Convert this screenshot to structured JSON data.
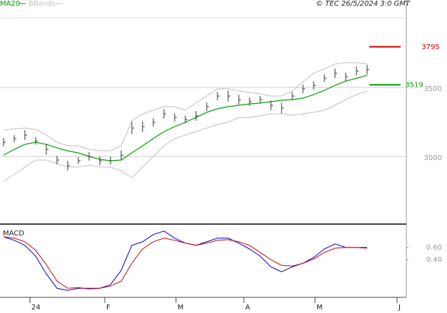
{
  "chart_data": [
    {
      "type": "ohlc",
      "source": "© TEC 26/5/2024 3:0 GMT",
      "categories": [
        null,
        null,
        null,
        null,
        null,
        null,
        null,
        null,
        null,
        null,
        null,
        null,
        null,
        null,
        null,
        null,
        null,
        null,
        null,
        null,
        null,
        null,
        null,
        null,
        null,
        null,
        null,
        null,
        null,
        null,
        null,
        null,
        null,
        null,
        null
      ],
      "xlim": [
        -0.33,
        37.67
      ],
      "ylim": [
        2510,
        4134
      ],
      "yticks": [
        3000,
        3500
      ],
      "grid": true,
      "bar_color": "#333333",
      "high": [
        3133,
        3154,
        3190,
        3141,
        3092,
        3004,
        2968,
        2994,
        3030,
        3001,
        2997,
        3045,
        3251,
        3256,
        3277,
        3344,
        3313,
        3296,
        3329,
        3393,
        3468,
        3478,
        3447,
        3427,
        3440,
        3406,
        3391,
        3468,
        3522,
        3545,
        3595,
        3638,
        3607,
        3651,
        3664
      ],
      "low": [
        3073,
        3104,
        3120,
        3085,
        3012,
        2944,
        2898,
        2944,
        2970,
        2937,
        2941,
        2975,
        3161,
        3176,
        3217,
        3274,
        3253,
        3240,
        3259,
        3329,
        3408,
        3398,
        3377,
        3367,
        3384,
        3336,
        3311,
        3408,
        3458,
        3485,
        3539,
        3568,
        3547,
        3587,
        3594
      ],
      "close": [
        3103,
        3129,
        3155,
        3113,
        3052,
        2974,
        2933,
        2969,
        3000,
        2969,
        2969,
        3010,
        3206,
        3216,
        3247,
        3309,
        3283,
        3268,
        3294,
        3361,
        3438,
        3438,
        3412,
        3397,
        3412,
        3371,
        3351,
        3438,
        3490,
        3515,
        3567,
        3603,
        3577,
        3619,
        3629
      ],
      "series": [
        {
          "name": "MA20",
          "color": "#00a000",
          "values": [
            3010,
            3052,
            3088,
            3103,
            3088,
            3062,
            3041,
            3026,
            3000,
            2979,
            2969,
            2974,
            3026,
            3077,
            3129,
            3180,
            3216,
            3247,
            3283,
            3320,
            3345,
            3361,
            3371,
            3381,
            3387,
            3397,
            3407,
            3412,
            3423,
            3448,
            3479,
            3515,
            3546,
            3567,
            3588
          ]
        },
        {
          "name": "BBands",
          "color": "#c0c0c0",
          "upper": [
            3191,
            3201,
            3206,
            3196,
            3155,
            3103,
            3077,
            3077,
            3052,
            3041,
            3041,
            3077,
            3258,
            3309,
            3335,
            3361,
            3361,
            3335,
            3387,
            3438,
            3490,
            3490,
            3474,
            3464,
            3454,
            3438,
            3438,
            3474,
            3541,
            3603,
            3634,
            3670,
            3680,
            3680,
            3670
          ],
          "lower": [
            2820,
            2871,
            2923,
            2974,
            2974,
            2948,
            2923,
            2923,
            2938,
            2923,
            2923,
            2897,
            2845,
            2923,
            3000,
            3077,
            3129,
            3155,
            3180,
            3206,
            3232,
            3247,
            3283,
            3283,
            3294,
            3309,
            3309,
            3299,
            3309,
            3320,
            3335,
            3371,
            3412,
            3448,
            3474
          ]
        }
      ],
      "price_labels": [
        {
          "value": 3795,
          "color": "#cc0000"
        },
        {
          "value": 3519,
          "color": "#00a000"
        }
      ]
    },
    {
      "type": "line",
      "title": "MACD",
      "xlim": [
        -0.33,
        37.67
      ],
      "xticks": [
        {
          "value": 2.47,
          "label": "24"
        },
        {
          "value": 9.47,
          "label": "F"
        },
        {
          "value": 16.13,
          "label": "M"
        },
        {
          "value": 22.47,
          "label": "A"
        },
        {
          "value": 29.13,
          "label": "M"
        },
        {
          "value": 36.8,
          "label": "J"
        }
      ],
      "ylim": [
        -0.22,
        0.95
      ],
      "yticks": [
        {
          "value": 0.6,
          "label": "0.60"
        },
        {
          "value": 0.4,
          "label": "0.40"
        }
      ],
      "series": [
        {
          "color": "#0000cc",
          "values": [
            0.776,
            0.718,
            0.635,
            0.459,
            0.165,
            -0.071,
            -0.106,
            -0.071,
            -0.071,
            -0.071,
            -0.012,
            0.224,
            0.635,
            0.694,
            0.812,
            0.871,
            0.753,
            0.671,
            0.635,
            0.694,
            0.753,
            0.753,
            0.671,
            0.576,
            0.459,
            0.282,
            0.2,
            0.282,
            0.341,
            0.435,
            0.576,
            0.659,
            0.6,
            0.6,
            0.6
          ]
        },
        {
          "color": "#cc0000",
          "values": [
            0.776,
            0.753,
            0.694,
            0.553,
            0.318,
            0.047,
            -0.071,
            -0.059,
            -0.082,
            -0.071,
            -0.035,
            0.047,
            0.341,
            0.576,
            0.694,
            0.753,
            0.718,
            0.671,
            0.635,
            0.671,
            0.718,
            0.729,
            0.694,
            0.635,
            0.518,
            0.4,
            0.306,
            0.294,
            0.341,
            0.412,
            0.518,
            0.588,
            0.6,
            0.6,
            0.588
          ]
        }
      ]
    }
  ]
}
